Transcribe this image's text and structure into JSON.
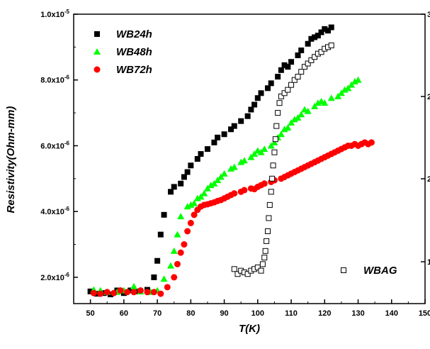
{
  "chart_data": {
    "type": "scatter",
    "title": "",
    "xlabel": "T(K)",
    "ylabel": "Resistivity(Ohm-mm)",
    "xlim": [
      45,
      150
    ],
    "ylim": [
      1.2e-06,
      1e-05
    ],
    "x_ticks": [
      50,
      60,
      70,
      80,
      90,
      100,
      110,
      120,
      130,
      140,
      150
    ],
    "x_tick_labels": [
      "50",
      "60",
      "70",
      "80",
      "90",
      "100",
      "110",
      "120",
      "130",
      "140",
      "150"
    ],
    "y_ticks": [
      2e-06,
      4e-06,
      6e-06,
      8e-06,
      1e-05
    ],
    "y_tick_labels": [
      "2.0x10-6",
      "4.0x10-6",
      "6.0x10-6",
      "8.0x10-6",
      "1.0x10-5"
    ],
    "right_axis_tick_labels": [
      "1",
      "2",
      "2",
      "3"
    ],
    "grid": false,
    "legend_position": "top-left",
    "series": [
      {
        "name": "WB24h",
        "marker": "filled-square",
        "color": "#000000",
        "points": [
          [
            50,
            1.57e-06
          ],
          [
            52,
            1.5e-06
          ],
          [
            54,
            1.52e-06
          ],
          [
            56,
            1.48e-06
          ],
          [
            58,
            1.6e-06
          ],
          [
            60,
            1.52e-06
          ],
          [
            62,
            1.6e-06
          ],
          [
            64,
            1.57e-06
          ],
          [
            67,
            1.62e-06
          ],
          [
            69,
            2e-06
          ],
          [
            70,
            2.5e-06
          ],
          [
            71,
            3.3e-06
          ],
          [
            72,
            3.9e-06
          ],
          [
            74,
            4.6e-06
          ],
          [
            75,
            4.75e-06
          ],
          [
            77,
            4.85e-06
          ],
          [
            78,
            5.05e-06
          ],
          [
            79,
            5.2e-06
          ],
          [
            80,
            5.4e-06
          ],
          [
            82,
            5.6e-06
          ],
          [
            83,
            5.75e-06
          ],
          [
            85,
            5.9e-06
          ],
          [
            87,
            6.1e-06
          ],
          [
            88,
            6.25e-06
          ],
          [
            90,
            6.35e-06
          ],
          [
            92,
            6.5e-06
          ],
          [
            93,
            6.6e-06
          ],
          [
            95,
            6.75e-06
          ],
          [
            97,
            6.9e-06
          ],
          [
            98,
            7.1e-06
          ],
          [
            99,
            7.25e-06
          ],
          [
            100,
            7.45e-06
          ],
          [
            101,
            7.6e-06
          ],
          [
            103,
            7.75e-06
          ],
          [
            104,
            7.9e-06
          ],
          [
            106,
            8.1e-06
          ],
          [
            107,
            8.3e-06
          ],
          [
            108,
            8.45e-06
          ],
          [
            109,
            8.4e-06
          ],
          [
            110,
            8.55e-06
          ],
          [
            112,
            8.75e-06
          ],
          [
            113,
            8.9e-06
          ],
          [
            115,
            9.1e-06
          ],
          [
            116,
            9.25e-06
          ],
          [
            117,
            9.3e-06
          ],
          [
            118,
            9.35e-06
          ],
          [
            119,
            9.45e-06
          ],
          [
            120,
            9.55e-06
          ],
          [
            121,
            9.5e-06
          ],
          [
            122,
            9.6e-06
          ]
        ]
      },
      {
        "name": "WB48h",
        "marker": "filled-triangle",
        "color": "#00ff00",
        "points": [
          [
            51,
            1.62e-06
          ],
          [
            53,
            1.6e-06
          ],
          [
            55,
            1.55e-06
          ],
          [
            58,
            1.55e-06
          ],
          [
            60,
            1.6e-06
          ],
          [
            63,
            1.72e-06
          ],
          [
            65,
            1.57e-06
          ],
          [
            68,
            1.55e-06
          ],
          [
            70,
            1.6e-06
          ],
          [
            72,
            1.95e-06
          ],
          [
            74,
            2.35e-06
          ],
          [
            75,
            2.8e-06
          ],
          [
            76,
            3.3e-06
          ],
          [
            77,
            3.85e-06
          ],
          [
            79,
            4.15e-06
          ],
          [
            80,
            4.2e-06
          ],
          [
            81,
            4.25e-06
          ],
          [
            82,
            4.4e-06
          ],
          [
            83,
            4.45e-06
          ],
          [
            84,
            4.55e-06
          ],
          [
            85,
            4.7e-06
          ],
          [
            86,
            4.8e-06
          ],
          [
            87,
            4.85e-06
          ],
          [
            88,
            4.95e-06
          ],
          [
            89,
            5.05e-06
          ],
          [
            90,
            5.15e-06
          ],
          [
            92,
            5.3e-06
          ],
          [
            93,
            5.35e-06
          ],
          [
            95,
            5.5e-06
          ],
          [
            96,
            5.55e-06
          ],
          [
            98,
            5.65e-06
          ],
          [
            99,
            5.75e-06
          ],
          [
            100,
            5.85e-06
          ],
          [
            101,
            5.8e-06
          ],
          [
            102,
            5.9e-06
          ],
          [
            104,
            6e-06
          ],
          [
            105,
            6.1e-06
          ],
          [
            106,
            6.25e-06
          ],
          [
            107,
            6.35e-06
          ],
          [
            108,
            6.5e-06
          ],
          [
            109,
            6.55e-06
          ],
          [
            110,
            6.7e-06
          ],
          [
            111,
            6.8e-06
          ],
          [
            112,
            6.85e-06
          ],
          [
            113,
            6.95e-06
          ],
          [
            114,
            7.1e-06
          ],
          [
            115,
            7.05e-06
          ],
          [
            117,
            7.2e-06
          ],
          [
            118,
            7.3e-06
          ],
          [
            119,
            7.35e-06
          ],
          [
            120,
            7.3e-06
          ],
          [
            122,
            7.45e-06
          ],
          [
            124,
            7.5e-06
          ],
          [
            125,
            7.6e-06
          ],
          [
            126,
            7.7e-06
          ],
          [
            127,
            7.75e-06
          ],
          [
            128,
            7.85e-06
          ],
          [
            129,
            7.95e-06
          ],
          [
            130,
            8e-06
          ]
        ]
      },
      {
        "name": "WB72h",
        "marker": "filled-circle",
        "color": "#ff0000",
        "points": [
          [
            51,
            1.52e-06
          ],
          [
            53,
            1.5e-06
          ],
          [
            55,
            1.55e-06
          ],
          [
            57,
            1.52e-06
          ],
          [
            59,
            1.6e-06
          ],
          [
            61,
            1.55e-06
          ],
          [
            63,
            1.55e-06
          ],
          [
            65,
            1.6e-06
          ],
          [
            67,
            1.55e-06
          ],
          [
            69,
            1.55e-06
          ],
          [
            71,
            1.5e-06
          ],
          [
            73,
            1.7e-06
          ],
          [
            75,
            2e-06
          ],
          [
            76,
            2.4e-06
          ],
          [
            77,
            2.75e-06
          ],
          [
            78,
            3e-06
          ],
          [
            79,
            3.4e-06
          ],
          [
            80,
            3.65e-06
          ],
          [
            81,
            3.9e-06
          ],
          [
            82,
            4.05e-06
          ],
          [
            83,
            4.15e-06
          ],
          [
            84,
            4.2e-06
          ],
          [
            85,
            4.22e-06
          ],
          [
            86,
            4.25e-06
          ],
          [
            87,
            4.28e-06
          ],
          [
            88,
            4.32e-06
          ],
          [
            89,
            4.35e-06
          ],
          [
            90,
            4.4e-06
          ],
          [
            91,
            4.45e-06
          ],
          [
            92,
            4.5e-06
          ],
          [
            93,
            4.55e-06
          ],
          [
            95,
            4.6e-06
          ],
          [
            96,
            4.65e-06
          ],
          [
            98,
            4.7e-06
          ],
          [
            99,
            4.68e-06
          ],
          [
            100,
            4.75e-06
          ],
          [
            101,
            4.8e-06
          ],
          [
            102,
            4.85e-06
          ],
          [
            104,
            4.9e-06
          ],
          [
            105,
            4.95e-06
          ],
          [
            107,
            5e-06
          ],
          [
            108,
            5.05e-06
          ],
          [
            109,
            5.1e-06
          ],
          [
            110,
            5.15e-06
          ],
          [
            111,
            5.2e-06
          ],
          [
            112,
            5.25e-06
          ],
          [
            113,
            5.3e-06
          ],
          [
            114,
            5.35e-06
          ],
          [
            115,
            5.4e-06
          ],
          [
            116,
            5.45e-06
          ],
          [
            117,
            5.5e-06
          ],
          [
            118,
            5.55e-06
          ],
          [
            119,
            5.6e-06
          ],
          [
            120,
            5.65e-06
          ],
          [
            121,
            5.7e-06
          ],
          [
            122,
            5.75e-06
          ],
          [
            123,
            5.8e-06
          ],
          [
            124,
            5.85e-06
          ],
          [
            125,
            5.9e-06
          ],
          [
            126,
            5.95e-06
          ],
          [
            127,
            6e-06
          ],
          [
            128,
            6e-06
          ],
          [
            129,
            6.05e-06
          ],
          [
            130,
            6e-06
          ],
          [
            131,
            6.05e-06
          ],
          [
            132,
            6.1e-06
          ],
          [
            133,
            6.05e-06
          ],
          [
            134,
            6.1e-06
          ]
        ]
      },
      {
        "name": "WBAG",
        "marker": "open-square",
        "color": "#000000",
        "points": [
          [
            93,
            2.25e-06
          ],
          [
            94,
            2.1e-06
          ],
          [
            95,
            2.2e-06
          ],
          [
            96,
            2.15e-06
          ],
          [
            97,
            2.1e-06
          ],
          [
            98,
            2.2e-06
          ],
          [
            99,
            2.25e-06
          ],
          [
            100,
            2.3e-06
          ],
          [
            101,
            2.2e-06
          ],
          [
            101.5,
            2.4e-06
          ],
          [
            102,
            2.6e-06
          ],
          [
            102.3,
            2.8e-06
          ],
          [
            102.6,
            3.1e-06
          ],
          [
            103,
            3.4e-06
          ],
          [
            103.3,
            3.8e-06
          ],
          [
            103.6,
            4.2e-06
          ],
          [
            104,
            4.6e-06
          ],
          [
            104.3,
            5e-06
          ],
          [
            104.6,
            5.4e-06
          ],
          [
            105,
            5.8e-06
          ],
          [
            105.3,
            6.2e-06
          ],
          [
            105.6,
            6.6e-06
          ],
          [
            106,
            7e-06
          ],
          [
            106.5,
            7.3e-06
          ],
          [
            107,
            7.5e-06
          ],
          [
            108,
            7.6e-06
          ],
          [
            109,
            7.7e-06
          ],
          [
            110,
            7.85e-06
          ],
          [
            111,
            8e-06
          ],
          [
            112,
            8.1e-06
          ],
          [
            113,
            8.25e-06
          ],
          [
            114,
            8.4e-06
          ],
          [
            115,
            8.5e-06
          ],
          [
            116,
            8.6e-06
          ],
          [
            117,
            8.7e-06
          ],
          [
            118,
            8.8e-06
          ],
          [
            119,
            8.85e-06
          ],
          [
            120,
            8.95e-06
          ],
          [
            121,
            9e-06
          ],
          [
            122,
            9.05e-06
          ]
        ]
      }
    ]
  }
}
